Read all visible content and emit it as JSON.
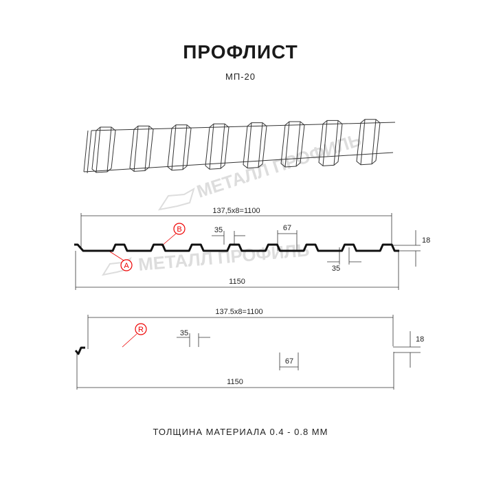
{
  "header": {
    "title": "ПРОФЛИСТ",
    "subtitle": "МП-20"
  },
  "watermark": {
    "text": "МЕТАЛЛ ПРОФИЛЬ"
  },
  "profile_1": {
    "pitch_label": "137,5x8=1100",
    "crest_width": "35",
    "valley_width": "67",
    "trough_width": "35",
    "height": "18",
    "total_width": "1150",
    "label_a": "A",
    "label_b": "B"
  },
  "profile_2": {
    "pitch_label": "137.5x8=1100",
    "crest_width": "35",
    "valley_width": "67",
    "height": "18",
    "total_width": "1150",
    "label_r": "R"
  },
  "footer": {
    "thickness": "ТОЛЩИНА МАТЕРИАЛА 0.4 - 0.8 ММ"
  },
  "colors": {
    "line": "#111111",
    "callout": "#e00000",
    "watermark": "#dddddd"
  }
}
